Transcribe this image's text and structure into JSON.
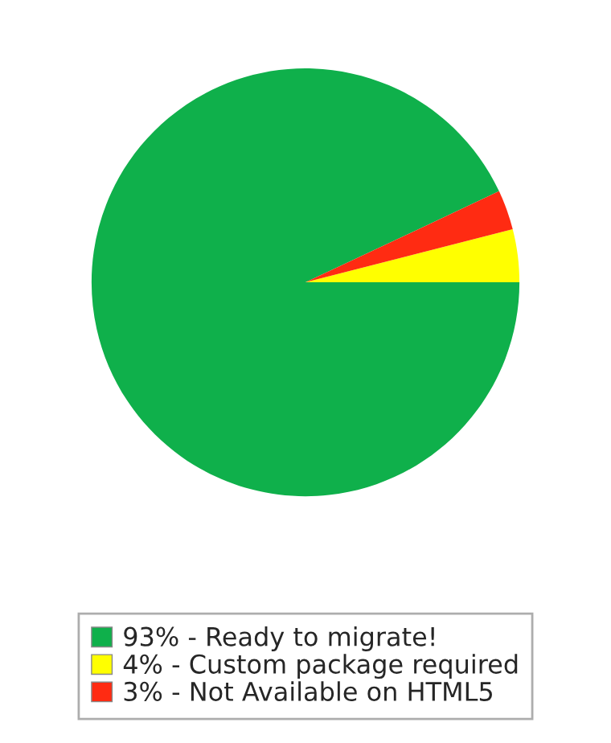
{
  "chart_data": {
    "type": "pie",
    "categories": [
      "93% - Ready to migrate!",
      "4% - Custom package required",
      "3% - Not Available on HTML5"
    ],
    "values": [
      93,
      4,
      3
    ],
    "colors": [
      "#0fb04b",
      "#ffff00",
      "#ff2b12"
    ],
    "legend": "bottom"
  }
}
